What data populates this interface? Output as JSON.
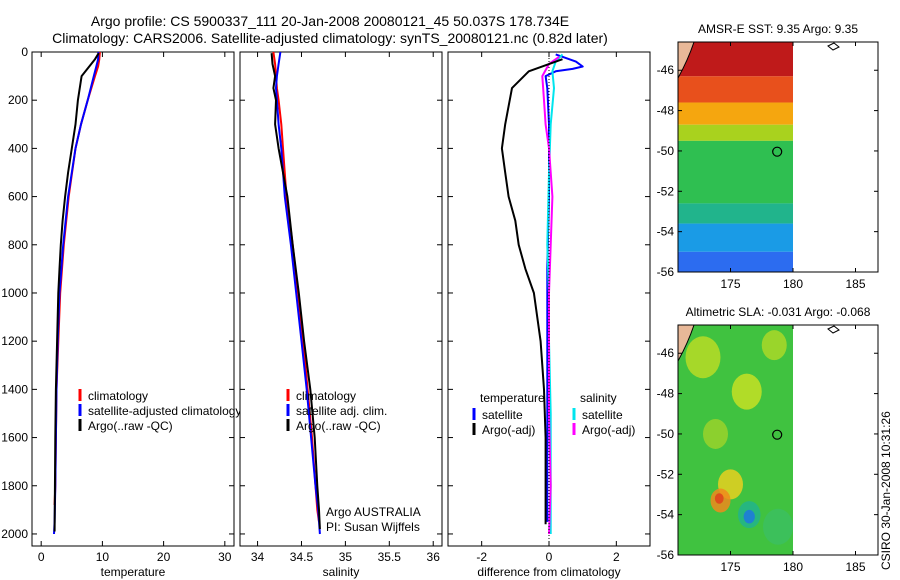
{
  "title_line1": "Argo profile: CS 5900337_111 20-Jan-2008 20080121_45 50.037S 178.734E",
  "title_line2": "Climatology: CARS2006. Satellite-adjusted climatology: synTS_20080121.nc (0.82d later)",
  "stamp": "CSIRO 30-Jan-2008 10:31:26",
  "colors": {
    "climatology": "#ff0000",
    "satellite": "#0000ff",
    "argo": "#000000",
    "sat_diff_sal": "#00e5ee",
    "argo_diff_sal": "#ff00ff",
    "land": "#e8b898"
  },
  "chart_data": [
    {
      "type": "line",
      "panel": "temperature",
      "xlabel": "temperature",
      "ylabel": "",
      "xlim": [
        -1.5,
        31.5
      ],
      "ylim": [
        2050,
        0
      ],
      "y_reversed": true,
      "xticks": [
        0,
        10,
        20,
        30
      ],
      "xtick_labels": [
        "0",
        "10",
        "20",
        "30"
      ],
      "yticks": [
        0,
        200,
        400,
        600,
        800,
        1000,
        1200,
        1400,
        1600,
        1800,
        2000
      ],
      "ytick_labels": [
        "0",
        "200",
        "400",
        "600",
        "800",
        "1000",
        "1200",
        "1400",
        "1600",
        "1800",
        "2000"
      ],
      "legend": [
        "climatology",
        "satellite-adjusted climatology",
        "Argo(..raw -QC)"
      ],
      "legend_position": "lower-right",
      "series": [
        {
          "name": "climatology",
          "color": "#ff0000",
          "x": [
            9.6,
            9.5,
            9.3,
            8.8,
            7.6,
            6.5,
            5.6,
            4.5,
            3.7,
            3.1,
            2.8,
            2.5,
            2.4,
            2.3,
            2.2
          ],
          "y": [
            0,
            30,
            60,
            100,
            200,
            300,
            400,
            600,
            800,
            1000,
            1200,
            1400,
            1600,
            1800,
            1880
          ]
        },
        {
          "name": "satellite-adjusted climatology",
          "color": "#0000ff",
          "x": [
            9.35,
            9.3,
            9.0,
            8.6,
            7.6,
            6.5,
            5.6,
            4.4,
            3.6,
            3.0,
            2.7,
            2.5,
            2.4,
            2.3,
            2.2,
            2.1
          ],
          "y": [
            0,
            30,
            60,
            100,
            200,
            300,
            400,
            600,
            800,
            1000,
            1200,
            1400,
            1600,
            1800,
            1950,
            2000
          ]
        },
        {
          "name": "Argo(..raw -QC)",
          "color": "#000000",
          "x": [
            9.4,
            8.8,
            6.6,
            6.0,
            5.6,
            5.0,
            4.4,
            3.9,
            3.5,
            3.2,
            3.0,
            2.8,
            2.6,
            2.4,
            2.3,
            2.2
          ],
          "y": [
            5,
            30,
            100,
            200,
            300,
            400,
            500,
            600,
            700,
            800,
            900,
            1000,
            1200,
            1400,
            1600,
            1990
          ]
        }
      ]
    },
    {
      "type": "line",
      "panel": "salinity",
      "xlabel": "salinity",
      "ylabel": "",
      "xlim": [
        33.8,
        36.1
      ],
      "ylim": [
        2050,
        0
      ],
      "y_reversed": true,
      "xticks": [
        34,
        34.5,
        35,
        35.5,
        36
      ],
      "xtick_labels": [
        "34",
        "34.5",
        "35",
        "35.5",
        "36"
      ],
      "legend": [
        "climatology",
        "satellite adj. clim.",
        "Argo(..raw -QC)"
      ],
      "legend_position": "lower-right",
      "annotations": [
        "Argo AUSTRALIA",
        "PI: Susan Wijffels"
      ],
      "series": [
        {
          "name": "climatology",
          "color": "#ff0000",
          "x": [
            34.18,
            34.2,
            34.21,
            34.22,
            34.24,
            34.27,
            34.29,
            34.33,
            34.4,
            34.46,
            34.52,
            34.57,
            34.62,
            34.66,
            34.68,
            34.7
          ],
          "y": [
            0,
            50,
            100,
            150,
            200,
            300,
            400,
            600,
            800,
            1000,
            1200,
            1400,
            1600,
            1800,
            1900,
            1950
          ]
        },
        {
          "name": "satellite adj. clim.",
          "color": "#0000ff",
          "x": [
            34.26,
            34.24,
            34.22,
            34.21,
            34.22,
            34.24,
            34.27,
            34.31,
            34.38,
            34.44,
            34.5,
            34.56,
            34.61,
            34.66,
            34.69,
            34.71
          ],
          "y": [
            0,
            50,
            100,
            150,
            200,
            300,
            400,
            600,
            800,
            1000,
            1200,
            1400,
            1600,
            1800,
            1900,
            2000
          ]
        },
        {
          "name": "Argo(..raw -QC)",
          "color": "#000000",
          "x": [
            34.16,
            34.17,
            34.2,
            34.18,
            34.21,
            34.2,
            34.24,
            34.29,
            34.34,
            34.4,
            34.47,
            34.53,
            34.6,
            34.65,
            34.68,
            34.7,
            34.71
          ],
          "y": [
            5,
            50,
            100,
            150,
            200,
            300,
            400,
            500,
            600,
            800,
            1000,
            1200,
            1400,
            1600,
            1800,
            1900,
            1980
          ]
        }
      ]
    },
    {
      "type": "line",
      "panel": "difference",
      "xlabel": "difference from climatology",
      "ylabel": "",
      "xlim": [
        -3.0,
        3.0
      ],
      "ylim": [
        2050,
        0
      ],
      "y_reversed": true,
      "xticks": [
        -2,
        0,
        2
      ],
      "xtick_labels": [
        "-2",
        "0",
        "2"
      ],
      "legend_columns": [
        {
          "header": "temperature",
          "entries": [
            "satellite",
            "Argo(-adj)"
          ]
        },
        {
          "header": "salinity",
          "entries": [
            "satellite",
            "Argo(-adj)"
          ]
        }
      ],
      "legend_position": "lower-right",
      "series": [
        {
          "name": "temperature satellite",
          "color": "#0000ff",
          "x": [
            0.2,
            0.4,
            0.8,
            1.0,
            0.7,
            0.2,
            -0.1,
            -0.05,
            0.0,
            0.0,
            -0.05,
            -0.05,
            -0.05,
            -0.05,
            -0.05
          ],
          "y": [
            10,
            20,
            40,
            60,
            70,
            80,
            100,
            150,
            300,
            600,
            900,
            1200,
            1500,
            1800,
            1950
          ]
        },
        {
          "name": "salinity satellite",
          "color": "#00e5ee",
          "x": [
            0.4,
            0.2,
            0.1,
            0.15,
            0.05,
            0.0,
            -0.05,
            0.0,
            0.0,
            0.05,
            0.05,
            0.05,
            0.05
          ],
          "y": [
            10,
            40,
            80,
            150,
            300,
            500,
            800,
            1000,
            1200,
            1500,
            1700,
            1900,
            2000
          ]
        },
        {
          "name": "salinity Argo(-adj)",
          "color": "#ff00ff",
          "x": [
            0.3,
            0.0,
            -0.2,
            -0.15,
            -0.1,
            0.0,
            0.05,
            0.1,
            0.05,
            0.0,
            0.0,
            0.0,
            0.05,
            0.0
          ],
          "y": [
            20,
            50,
            100,
            200,
            300,
            400,
            500,
            600,
            800,
            1000,
            1200,
            1500,
            1800,
            2000
          ]
        },
        {
          "name": "temperature Argo(-adj)",
          "color": "#000000",
          "x": [
            0.4,
            -0.6,
            -1.1,
            -1.3,
            -1.4,
            -1.3,
            -1.2,
            -1.0,
            -0.9,
            -0.7,
            -0.45,
            -0.25,
            -0.15,
            -0.1,
            -0.1,
            -0.1
          ],
          "y": [
            30,
            80,
            150,
            300,
            400,
            500,
            600,
            700,
            800,
            900,
            1000,
            1200,
            1400,
            1600,
            1800,
            1960
          ]
        }
      ]
    },
    {
      "type": "heatmap",
      "panel": "sst_map",
      "title": "AMSR-E SST: 9.35 Argo: 9.35",
      "xlim": [
        170.8,
        186.8
      ],
      "ylim": [
        -56,
        -44.6
      ],
      "xticks": [
        175,
        180,
        185
      ],
      "xtick_labels": [
        "175",
        "180",
        "185"
      ],
      "yticks": [
        -46,
        -48,
        -50,
        -52,
        -54,
        -56
      ],
      "ytick_labels": [
        "-46",
        "-48",
        "-50",
        "-52",
        "-54",
        "-56"
      ],
      "data_x_range": [
        170.8,
        180.0
      ],
      "marker": {
        "lon": 178.734,
        "lat": -50.037
      },
      "color_bands": [
        {
          "lat_from": -44.6,
          "lat_to": -46.3,
          "color": "#bf1a1a"
        },
        {
          "lat_from": -46.3,
          "lat_to": -47.6,
          "color": "#e8501c"
        },
        {
          "lat_from": -47.6,
          "lat_to": -48.7,
          "color": "#f5a60f"
        },
        {
          "lat_from": -48.7,
          "lat_to": -49.5,
          "color": "#a9d21e"
        },
        {
          "lat_from": -49.5,
          "lat_to": -52.6,
          "color": "#2fbf51"
        },
        {
          "lat_from": -52.6,
          "lat_to": -53.6,
          "color": "#21b48c"
        },
        {
          "lat_from": -53.6,
          "lat_to": -55.0,
          "color": "#1a9be6"
        },
        {
          "lat_from": -55.0,
          "lat_to": -56.0,
          "color": "#2c6cf0"
        }
      ]
    },
    {
      "type": "heatmap",
      "panel": "sla_map",
      "title": "Altimetric SLA: -0.031 Argo: -0.068",
      "xlim": [
        170.8,
        186.8
      ],
      "ylim": [
        -56,
        -44.6
      ],
      "xticks": [
        175,
        180,
        185
      ],
      "xtick_labels": [
        "175",
        "180",
        "185"
      ],
      "yticks": [
        -46,
        -48,
        -50,
        -52,
        -54,
        -56
      ],
      "ytick_labels": [
        "-46",
        "-48",
        "-50",
        "-52",
        "-54",
        "-56"
      ],
      "data_x_range": [
        170.8,
        180.0
      ],
      "marker": {
        "lon": 178.734,
        "lat": -50.037
      },
      "background_color": "#40c240",
      "blobs": [
        {
          "lon": 172.8,
          "lat": -46.2,
          "r": 1.4,
          "color": "#b8dc26"
        },
        {
          "lon": 176.3,
          "lat": -47.9,
          "r": 1.2,
          "color": "#c6e024"
        },
        {
          "lon": 178.5,
          "lat": -45.6,
          "r": 1.0,
          "color": "#aad828"
        },
        {
          "lon": 173.8,
          "lat": -50.0,
          "r": 1.0,
          "color": "#9ad22c"
        },
        {
          "lon": 175.0,
          "lat": -52.5,
          "r": 1.0,
          "color": "#e8d020"
        },
        {
          "lon": 174.2,
          "lat": -53.3,
          "r": 0.8,
          "color": "#f08a1c"
        },
        {
          "lon": 174.1,
          "lat": -53.2,
          "r": 0.35,
          "color": "#e0401c"
        },
        {
          "lon": 176.5,
          "lat": -54.0,
          "r": 0.9,
          "color": "#22b48c"
        },
        {
          "lon": 176.5,
          "lat": -54.1,
          "r": 0.45,
          "color": "#1e78e0"
        },
        {
          "lon": 178.8,
          "lat": -54.6,
          "r": 1.2,
          "color": "#3cc060"
        }
      ]
    }
  ]
}
